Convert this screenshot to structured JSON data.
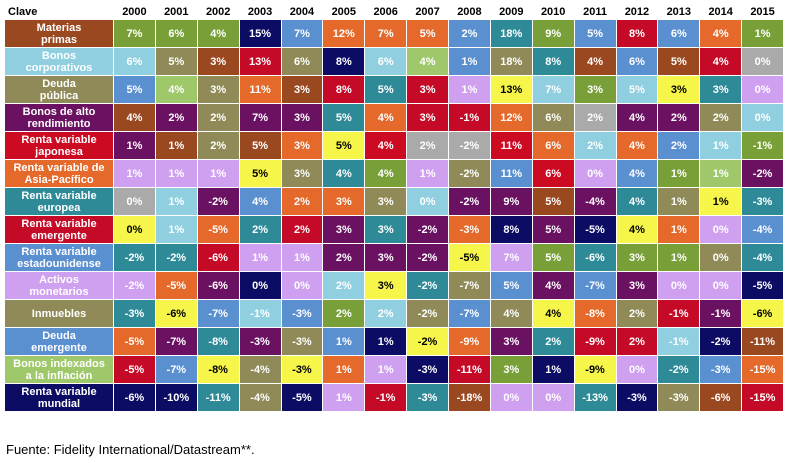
{
  "header": {
    "key_label": "Clave"
  },
  "footer": {
    "source": "Fuente: Fidelity International/Datastream**."
  },
  "colors": {
    "bonos_alto_rendimiento": "#6b1161",
    "rv_japonesa": "#cc0a22",
    "rv_asia_pacifico": "#e4692a",
    "rv_europea": "#2f8a98",
    "rv_emergente": "#c40a26",
    "rv_estadounidense": "#5a8fd0",
    "activos_monetarios": "#cfa0f0",
    "inmuebles": "#8f8a58",
    "deuda_emergente": "#5a8fd0",
    "bonos_indexados": "#9ec86a",
    "rv_mundial": "#0c0c64",
    "materias_primas": "#9a4820",
    "bonos_corporativos": "#8fcfdf",
    "deuda_publica": "#8f8a58"
  },
  "chart_data": {
    "type": "table",
    "title": "",
    "columns": [
      "2000",
      "2001",
      "2002",
      "2003",
      "2004",
      "2005",
      "2006",
      "2007",
      "2008",
      "2009",
      "2010",
      "2011",
      "2012",
      "2013",
      "2014",
      "2015"
    ],
    "assets": [
      {
        "label": "Materias\nprimas",
        "color": "#9a4820"
      },
      {
        "label": "Bonos\ncorporativos",
        "color": "#8fcfdf"
      },
      {
        "label": "Deuda\npública",
        "color": "#8f8a58"
      },
      {
        "label": "Bonos de alto\nrendimiento",
        "color": "#6b1161"
      },
      {
        "label": "Renta variable\njaponesa",
        "color": "#cc0a22"
      },
      {
        "label": "Renta variable de\nAsia-Pacífico",
        "color": "#e4692a"
      },
      {
        "label": "Renta variable\neuropea",
        "color": "#2f8a98"
      },
      {
        "label": "Renta variable\nemergente",
        "color": "#c40a26"
      },
      {
        "label": "Renta variable\nestadounidense",
        "color": "#5a8fd0"
      },
      {
        "label": "Activos\nmonetarios",
        "color": "#cfa0f0"
      },
      {
        "label": "Inmuebles",
        "color": "#8f8a58"
      },
      {
        "label": "Deuda\nemergente",
        "color": "#5a8fd0"
      },
      {
        "label": "Bonos indexados\na la inflación",
        "color": "#9ec86a"
      },
      {
        "label": "Renta variable\nmundial",
        "color": "#0c0c64"
      }
    ],
    "rows": [
      [
        [
          "7%",
          "#79a038"
        ],
        [
          "6%",
          "#79a038"
        ],
        [
          "4%",
          "#79a038"
        ],
        [
          "15%",
          "#0c0c64"
        ],
        [
          "7%",
          "#5a8fd0"
        ],
        [
          "12%",
          "#e4692a"
        ],
        [
          "7%",
          "#e4692a"
        ],
        [
          "5%",
          "#e4692a"
        ],
        [
          "2%",
          "#5a8fd0"
        ],
        [
          "18%",
          "#2f8a98"
        ],
        [
          "9%",
          "#79a038"
        ],
        [
          "5%",
          "#5a8fd0"
        ],
        [
          "8%",
          "#c40a26"
        ],
        [
          "6%",
          "#5a8fd0"
        ],
        [
          "4%",
          "#e4692a"
        ],
        [
          "1%",
          "#79a038"
        ]
      ],
      [
        [
          "6%",
          "#8fcfdf"
        ],
        [
          "5%",
          "#8f8a58"
        ],
        [
          "3%",
          "#9a4820"
        ],
        [
          "13%",
          "#c40a26"
        ],
        [
          "6%",
          "#8f8a58"
        ],
        [
          "8%",
          "#0c0c64"
        ],
        [
          "6%",
          "#8fcfdf"
        ],
        [
          "4%",
          "#9ec86a"
        ],
        [
          "1%",
          "#5a8fd0"
        ],
        [
          "18%",
          "#8f8a58"
        ],
        [
          "8%",
          "#2f8a98"
        ],
        [
          "4%",
          "#9a4820"
        ],
        [
          "6%",
          "#5a8fd0"
        ],
        [
          "5%",
          "#9a4820"
        ],
        [
          "4%",
          "#c40a26"
        ],
        [
          "0%",
          "#aaaaaa"
        ]
      ],
      [
        [
          "5%",
          "#5a8fd0"
        ],
        [
          "4%",
          "#9ec86a"
        ],
        [
          "3%",
          "#8f8a58"
        ],
        [
          "11%",
          "#e4692a"
        ],
        [
          "3%",
          "#9a4820"
        ],
        [
          "8%",
          "#c40a26"
        ],
        [
          "5%",
          "#2f8a98"
        ],
        [
          "3%",
          "#c40a26"
        ],
        [
          "1%",
          "#cfa0f0"
        ],
        [
          "13%",
          "#f5f54a"
        ],
        [
          "7%",
          "#8fcfdf"
        ],
        [
          "3%",
          "#79a038"
        ],
        [
          "5%",
          "#8fcfdf"
        ],
        [
          "3%",
          "#f5f54a"
        ],
        [
          "3%",
          "#2f8a98"
        ],
        [
          "0%",
          "#cfa0f0"
        ]
      ],
      [
        [
          "4%",
          "#9a4820"
        ],
        [
          "2%",
          "#6b1161"
        ],
        [
          "2%",
          "#8f8a58"
        ],
        [
          "7%",
          "#6b1161"
        ],
        [
          "3%",
          "#6b1161"
        ],
        [
          "5%",
          "#2f8a98"
        ],
        [
          "4%",
          "#e4692a"
        ],
        [
          "3%",
          "#c40a26"
        ],
        [
          "-1%",
          "#c40a26"
        ],
        [
          "12%",
          "#e4692a"
        ],
        [
          "6%",
          "#8f8a58"
        ],
        [
          "2%",
          "#aaaaaa"
        ],
        [
          "4%",
          "#6b1161"
        ],
        [
          "2%",
          "#6b1161"
        ],
        [
          "2%",
          "#8f8a58"
        ],
        [
          "0%",
          "#8fcfdf"
        ]
      ],
      [
        [
          "1%",
          "#6b1161"
        ],
        [
          "1%",
          "#9a4820"
        ],
        [
          "2%",
          "#8f8a58"
        ],
        [
          "5%",
          "#9a4820"
        ],
        [
          "3%",
          "#e4692a"
        ],
        [
          "5%",
          "#f5f54a"
        ],
        [
          "4%",
          "#cc0a22"
        ],
        [
          "2%",
          "#aaaaaa"
        ],
        [
          "-2%",
          "#aaaaaa"
        ],
        [
          "11%",
          "#cc0a22"
        ],
        [
          "6%",
          "#e4692a"
        ],
        [
          "2%",
          "#8fcfdf"
        ],
        [
          "4%",
          "#e4692a"
        ],
        [
          "2%",
          "#5a8fd0"
        ],
        [
          "1%",
          "#8fcfdf"
        ],
        [
          "-1%",
          "#79a038"
        ]
      ],
      [
        [
          "1%",
          "#cfa0f0"
        ],
        [
          "1%",
          "#cfa0f0"
        ],
        [
          "1%",
          "#cfa0f0"
        ],
        [
          "5%",
          "#f5f54a"
        ],
        [
          "3%",
          "#8f8a58"
        ],
        [
          "4%",
          "#2f8a98"
        ],
        [
          "4%",
          "#79a038"
        ],
        [
          "1%",
          "#cfa0f0"
        ],
        [
          "-2%",
          "#8f8a58"
        ],
        [
          "11%",
          "#5a8fd0"
        ],
        [
          "6%",
          "#cc0a22"
        ],
        [
          "0%",
          "#cfa0f0"
        ],
        [
          "4%",
          "#5a8fd0"
        ],
        [
          "1%",
          "#79a038"
        ],
        [
          "1%",
          "#9ec86a"
        ],
        [
          "-2%",
          "#6b1161"
        ]
      ],
      [
        [
          "0%",
          "#aaaaaa"
        ],
        [
          "1%",
          "#8fcfdf"
        ],
        [
          "-2%",
          "#6b1161"
        ],
        [
          "4%",
          "#5a8fd0"
        ],
        [
          "2%",
          "#e4692a"
        ],
        [
          "3%",
          "#e4692a"
        ],
        [
          "3%",
          "#8f8a58"
        ],
        [
          "0%",
          "#8fcfdf"
        ],
        [
          "-2%",
          "#6b1161"
        ],
        [
          "9%",
          "#6b1161"
        ],
        [
          "5%",
          "#9a4820"
        ],
        [
          "-4%",
          "#6b1161"
        ],
        [
          "4%",
          "#2f8a98"
        ],
        [
          "1%",
          "#8f8a58"
        ],
        [
          "1%",
          "#f5f54a"
        ],
        [
          "-3%",
          "#2f8a98"
        ]
      ],
      [
        [
          "0%",
          "#f5f54a"
        ],
        [
          "1%",
          "#8fcfdf"
        ],
        [
          "-5%",
          "#e4692a"
        ],
        [
          "2%",
          "#2f8a98"
        ],
        [
          "2%",
          "#c40a26"
        ],
        [
          "3%",
          "#6b1161"
        ],
        [
          "3%",
          "#2f8a98"
        ],
        [
          "-2%",
          "#6b1161"
        ],
        [
          "-3%",
          "#e4692a"
        ],
        [
          "8%",
          "#0c0c64"
        ],
        [
          "5%",
          "#6b1161"
        ],
        [
          "-5%",
          "#0c0c64"
        ],
        [
          "4%",
          "#f5f54a"
        ],
        [
          "1%",
          "#e4692a"
        ],
        [
          "0%",
          "#cfa0f0"
        ],
        [
          "-4%",
          "#5a8fd0"
        ]
      ],
      [
        [
          "-2%",
          "#2f8a98"
        ],
        [
          "-2%",
          "#2f8a98"
        ],
        [
          "-6%",
          "#c40a26"
        ],
        [
          "1%",
          "#cfa0f0"
        ],
        [
          "1%",
          "#cfa0f0"
        ],
        [
          "2%",
          "#6b1161"
        ],
        [
          "3%",
          "#6b1161"
        ],
        [
          "-2%",
          "#6b1161"
        ],
        [
          "-5%",
          "#f5f54a"
        ],
        [
          "7%",
          "#cfa0f0"
        ],
        [
          "5%",
          "#79a038"
        ],
        [
          "-6%",
          "#2f8a98"
        ],
        [
          "3%",
          "#79a038"
        ],
        [
          "1%",
          "#79a038"
        ],
        [
          "0%",
          "#8f8a58"
        ],
        [
          "-4%",
          "#2f8a98"
        ]
      ],
      [
        [
          "-2%",
          "#cfa0f0"
        ],
        [
          "-5%",
          "#e4692a"
        ],
        [
          "-6%",
          "#6b1161"
        ],
        [
          "0%",
          "#0c0c64"
        ],
        [
          "0%",
          "#cfa0f0"
        ],
        [
          "2%",
          "#8fcfdf"
        ],
        [
          "3%",
          "#f5f54a"
        ],
        [
          "-2%",
          "#2f8a98"
        ],
        [
          "-7%",
          "#8f8a58"
        ],
        [
          "5%",
          "#5a8fd0"
        ],
        [
          "4%",
          "#6b1161"
        ],
        [
          "-7%",
          "#5a8fd0"
        ],
        [
          "3%",
          "#6b1161"
        ],
        [
          "0%",
          "#cfa0f0"
        ],
        [
          "0%",
          "#cfa0f0"
        ],
        [
          "-5%",
          "#0c0c64"
        ]
      ],
      [
        [
          "-3%",
          "#2f8a98"
        ],
        [
          "-6%",
          "#f5f54a"
        ],
        [
          "-7%",
          "#5a8fd0"
        ],
        [
          "-1%",
          "#8fcfdf"
        ],
        [
          "-3%",
          "#5a8fd0"
        ],
        [
          "2%",
          "#79a038"
        ],
        [
          "2%",
          "#8fcfdf"
        ],
        [
          "-2%",
          "#8f8a58"
        ],
        [
          "-7%",
          "#5a8fd0"
        ],
        [
          "4%",
          "#8f8a58"
        ],
        [
          "4%",
          "#f5f54a"
        ],
        [
          "-8%",
          "#e4692a"
        ],
        [
          "2%",
          "#8f8a58"
        ],
        [
          "-1%",
          "#c40a26"
        ],
        [
          "-1%",
          "#6b1161"
        ],
        [
          "-6%",
          "#f5f54a"
        ]
      ],
      [
        [
          "-5%",
          "#e4692a"
        ],
        [
          "-7%",
          "#6b1161"
        ],
        [
          "-8%",
          "#2f8a98"
        ],
        [
          "-3%",
          "#6b1161"
        ],
        [
          "-3%",
          "#8f8a58"
        ],
        [
          "1%",
          "#5a8fd0"
        ],
        [
          "1%",
          "#0c0c64"
        ],
        [
          "-2%",
          "#f5f54a"
        ],
        [
          "-9%",
          "#e4692a"
        ],
        [
          "3%",
          "#6b1161"
        ],
        [
          "2%",
          "#2f8a98"
        ],
        [
          "-9%",
          "#c40a26"
        ],
        [
          "2%",
          "#c40a26"
        ],
        [
          "-1%",
          "#8fcfdf"
        ],
        [
          "-2%",
          "#0c0c64"
        ],
        [
          "-11%",
          "#9a4820"
        ]
      ],
      [
        [
          "-5%",
          "#c40a26"
        ],
        [
          "-7%",
          "#5a8fd0"
        ],
        [
          "-8%",
          "#f5f54a"
        ],
        [
          "-4%",
          "#8f8a58"
        ],
        [
          "-3%",
          "#f5f54a"
        ],
        [
          "1%",
          "#e4692a"
        ],
        [
          "1%",
          "#cfa0f0"
        ],
        [
          "-3%",
          "#0c0c64"
        ],
        [
          "-11%",
          "#c40a26"
        ],
        [
          "3%",
          "#79a038"
        ],
        [
          "1%",
          "#0c0c64"
        ],
        [
          "-9%",
          "#f5f54a"
        ],
        [
          "0%",
          "#cfa0f0"
        ],
        [
          "-2%",
          "#2f8a98"
        ],
        [
          "-3%",
          "#5a8fd0"
        ],
        [
          "-15%",
          "#e4692a"
        ]
      ],
      [
        [
          "-6%",
          "#0c0c64"
        ],
        [
          "-10%",
          "#0c0c64"
        ],
        [
          "-11%",
          "#2f8a98"
        ],
        [
          "-4%",
          "#8f8a58"
        ],
        [
          "-5%",
          "#0c0c64"
        ],
        [
          "1%",
          "#cfa0f0"
        ],
        [
          "-1%",
          "#c40a26"
        ],
        [
          "-3%",
          "#2f8a98"
        ],
        [
          "-18%",
          "#9a4820"
        ],
        [
          "0%",
          "#cfa0f0"
        ],
        [
          "0%",
          "#cfa0f0"
        ],
        [
          "-13%",
          "#2f8a98"
        ],
        [
          "-3%",
          "#0c0c64"
        ],
        [
          "-3%",
          "#8f8a58"
        ],
        [
          "-6%",
          "#9a4820"
        ],
        [
          "-15%",
          "#c40a26"
        ]
      ]
    ]
  }
}
